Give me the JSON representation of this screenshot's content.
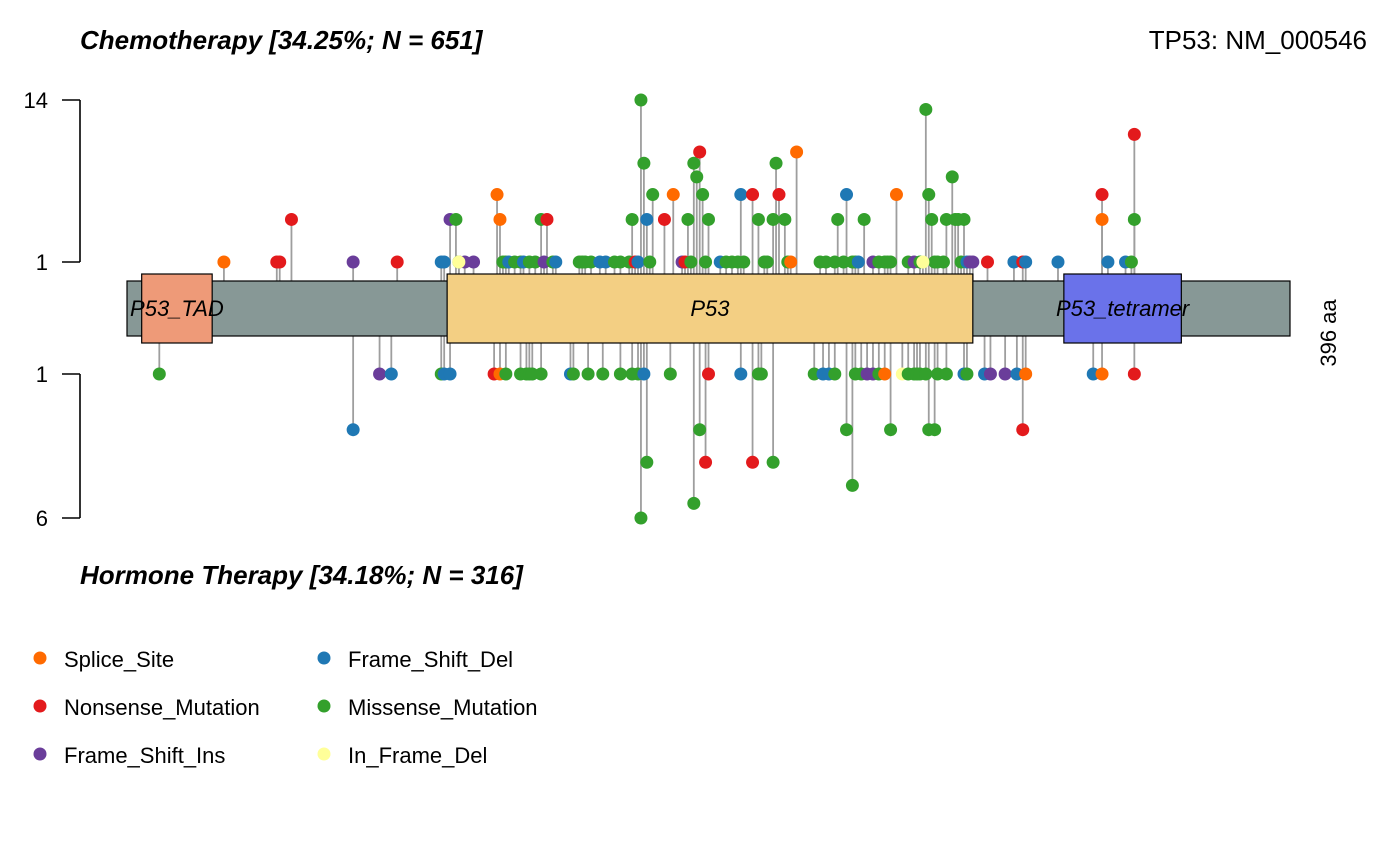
{
  "chart_data": {
    "type": "lollipop",
    "title_top": "Chemotherapy [34.25%; N = 651]",
    "title_bottom": "Hormone Therapy [34.18%; N = 316]",
    "gene_label": "TP53: NM_000546",
    "protein_length_label": "396 aa",
    "protein_length": 396,
    "y_ticks_top": [
      "14",
      "1"
    ],
    "y_ticks_bottom": [
      "1",
      "6"
    ],
    "domains": [
      {
        "name": "P53_TAD",
        "start": 5,
        "end": 29,
        "color": "#EE9A78"
      },
      {
        "name": "P53",
        "start": 109,
        "end": 288,
        "color": "#F3CF83"
      },
      {
        "name": "P53_tetramer",
        "start": 319,
        "end": 359,
        "color": "#6A72EA"
      }
    ],
    "legend": [
      {
        "label": "Splice_Site",
        "color": "#FF6A00",
        "key": "ss"
      },
      {
        "label": "Nonsense_Mutation",
        "color": "#E31A1C",
        "key": "nm"
      },
      {
        "label": "Frame_Shift_Ins",
        "color": "#6A3D9A",
        "key": "fi"
      },
      {
        "label": "Frame_Shift_Del",
        "color": "#1F78B4",
        "key": "fd"
      },
      {
        "label": "Missense_Mutation",
        "color": "#33A02C",
        "key": "mm"
      },
      {
        "label": "In_Frame_Del",
        "color": "#FFFF99",
        "key": "id"
      }
    ],
    "top_mutations": [
      {
        "pos": 33,
        "count": 1,
        "type": "ss"
      },
      {
        "pos": 51,
        "count": 1,
        "type": "nm"
      },
      {
        "pos": 52,
        "count": 1,
        "type": "nm"
      },
      {
        "pos": 56,
        "count": 2,
        "type": "nm"
      },
      {
        "pos": 77,
        "count": 1,
        "type": "fi"
      },
      {
        "pos": 92,
        "count": 1,
        "type": "nm"
      },
      {
        "pos": 107,
        "count": 1,
        "type": "fd"
      },
      {
        "pos": 108,
        "count": 1,
        "type": "fd"
      },
      {
        "pos": 110,
        "count": 2,
        "type": "fi"
      },
      {
        "pos": 112,
        "count": 2,
        "type": "mm"
      },
      {
        "pos": 113,
        "count": 1,
        "type": "mm"
      },
      {
        "pos": 115,
        "count": 1,
        "type": "fi"
      },
      {
        "pos": 118,
        "count": 1,
        "type": "fi"
      },
      {
        "pos": 126,
        "count": 3,
        "type": "ss"
      },
      {
        "pos": 127,
        "count": 2,
        "type": "ss"
      },
      {
        "pos": 128,
        "count": 1,
        "type": "mm"
      },
      {
        "pos": 129,
        "count": 1,
        "type": "mm"
      },
      {
        "pos": 130,
        "count": 1,
        "type": "fd"
      },
      {
        "pos": 132,
        "count": 1,
        "type": "mm"
      },
      {
        "pos": 134,
        "count": 1,
        "type": "mm"
      },
      {
        "pos": 135,
        "count": 1,
        "type": "fd"
      },
      {
        "pos": 137,
        "count": 1,
        "type": "mm"
      },
      {
        "pos": 139,
        "count": 1,
        "type": "mm"
      },
      {
        "pos": 141,
        "count": 2,
        "type": "mm"
      },
      {
        "pos": 142,
        "count": 1,
        "type": "fi"
      },
      {
        "pos": 143,
        "count": 2,
        "type": "nm"
      },
      {
        "pos": 145,
        "count": 1,
        "type": "mm"
      },
      {
        "pos": 146,
        "count": 1,
        "type": "fd"
      },
      {
        "pos": 154,
        "count": 1,
        "type": "mm"
      },
      {
        "pos": 155,
        "count": 1,
        "type": "mm"
      },
      {
        "pos": 156,
        "count": 1,
        "type": "mm"
      },
      {
        "pos": 158,
        "count": 1,
        "type": "mm"
      },
      {
        "pos": 161,
        "count": 1,
        "type": "fd"
      },
      {
        "pos": 163,
        "count": 1,
        "type": "fd"
      },
      {
        "pos": 166,
        "count": 1,
        "type": "mm"
      },
      {
        "pos": 168,
        "count": 1,
        "type": "mm"
      },
      {
        "pos": 171,
        "count": 1,
        "type": "mm"
      },
      {
        "pos": 172,
        "count": 2,
        "type": "mm"
      },
      {
        "pos": 173,
        "count": 1,
        "type": "nm"
      },
      {
        "pos": 174,
        "count": 1,
        "type": "fd"
      },
      {
        "pos": 175,
        "count": 14,
        "type": "mm"
      },
      {
        "pos": 176,
        "count": 5,
        "type": "mm"
      },
      {
        "pos": 177,
        "count": 2,
        "type": "fd"
      },
      {
        "pos": 178,
        "count": 1,
        "type": "mm"
      },
      {
        "pos": 179,
        "count": 3,
        "type": "mm"
      },
      {
        "pos": 183,
        "count": 2,
        "type": "nm"
      },
      {
        "pos": 186,
        "count": 3,
        "type": "ss"
      },
      {
        "pos": 189,
        "count": 1,
        "type": "fi"
      },
      {
        "pos": 190,
        "count": 1,
        "type": "nm"
      },
      {
        "pos": 191,
        "count": 2,
        "type": "mm"
      },
      {
        "pos": 192,
        "count": 1,
        "type": "mm"
      },
      {
        "pos": 193,
        "count": 5,
        "type": "mm"
      },
      {
        "pos": 194,
        "count": 4,
        "type": "mm"
      },
      {
        "pos": 195,
        "count": 6,
        "type": "nm"
      },
      {
        "pos": 196,
        "count": 3,
        "type": "mm"
      },
      {
        "pos": 197,
        "count": 1,
        "type": "mm"
      },
      {
        "pos": 198,
        "count": 2,
        "type": "mm"
      },
      {
        "pos": 202,
        "count": 1,
        "type": "fd"
      },
      {
        "pos": 204,
        "count": 1,
        "type": "mm"
      },
      {
        "pos": 206,
        "count": 1,
        "type": "mm"
      },
      {
        "pos": 208,
        "count": 1,
        "type": "mm"
      },
      {
        "pos": 209,
        "count": 3,
        "type": "fd"
      },
      {
        "pos": 210,
        "count": 1,
        "type": "mm"
      },
      {
        "pos": 213,
        "count": 3,
        "type": "nm"
      },
      {
        "pos": 215,
        "count": 2,
        "type": "mm"
      },
      {
        "pos": 217,
        "count": 1,
        "type": "mm"
      },
      {
        "pos": 218,
        "count": 1,
        "type": "mm"
      },
      {
        "pos": 220,
        "count": 2,
        "type": "mm"
      },
      {
        "pos": 221,
        "count": 5,
        "type": "mm"
      },
      {
        "pos": 222,
        "count": 3,
        "type": "nm"
      },
      {
        "pos": 224,
        "count": 2,
        "type": "mm"
      },
      {
        "pos": 225,
        "count": 1,
        "type": "mm"
      },
      {
        "pos": 226,
        "count": 1,
        "type": "ss"
      },
      {
        "pos": 228,
        "count": 6,
        "type": "ss"
      },
      {
        "pos": 236,
        "count": 1,
        "type": "mm"
      },
      {
        "pos": 238,
        "count": 1,
        "type": "mm"
      },
      {
        "pos": 241,
        "count": 1,
        "type": "mm"
      },
      {
        "pos": 242,
        "count": 2,
        "type": "mm"
      },
      {
        "pos": 244,
        "count": 1,
        "type": "mm"
      },
      {
        "pos": 245,
        "count": 3,
        "type": "fd"
      },
      {
        "pos": 247,
        "count": 1,
        "type": "mm"
      },
      {
        "pos": 248,
        "count": 1,
        "type": "mm"
      },
      {
        "pos": 249,
        "count": 1,
        "type": "fd"
      },
      {
        "pos": 251,
        "count": 2,
        "type": "mm"
      },
      {
        "pos": 254,
        "count": 1,
        "type": "fi"
      },
      {
        "pos": 256,
        "count": 1,
        "type": "mm"
      },
      {
        "pos": 258,
        "count": 1,
        "type": "mm"
      },
      {
        "pos": 259,
        "count": 1,
        "type": "mm"
      },
      {
        "pos": 260,
        "count": 1,
        "type": "mm"
      },
      {
        "pos": 262,
        "count": 3,
        "type": "ss"
      },
      {
        "pos": 266,
        "count": 1,
        "type": "mm"
      },
      {
        "pos": 268,
        "count": 1,
        "type": "fi"
      },
      {
        "pos": 270,
        "count": 1,
        "type": "mm"
      },
      {
        "pos": 272,
        "count": 12,
        "type": "mm"
      },
      {
        "pos": 273,
        "count": 3,
        "type": "mm"
      },
      {
        "pos": 274,
        "count": 2,
        "type": "mm"
      },
      {
        "pos": 275,
        "count": 1,
        "type": "mm"
      },
      {
        "pos": 276,
        "count": 1,
        "type": "mm"
      },
      {
        "pos": 278,
        "count": 1,
        "type": "mm"
      },
      {
        "pos": 279,
        "count": 2,
        "type": "mm"
      },
      {
        "pos": 281,
        "count": 4,
        "type": "mm"
      },
      {
        "pos": 282,
        "count": 2,
        "type": "mm"
      },
      {
        "pos": 283,
        "count": 2,
        "type": "mm"
      },
      {
        "pos": 284,
        "count": 1,
        "type": "mm"
      },
      {
        "pos": 285,
        "count": 2,
        "type": "mm"
      },
      {
        "pos": 286,
        "count": 1,
        "type": "fd"
      },
      {
        "pos": 287,
        "count": 1,
        "type": "fi"
      },
      {
        "pos": 288,
        "count": 1,
        "type": "fi"
      },
      {
        "pos": 293,
        "count": 1,
        "type": "nm"
      },
      {
        "pos": 302,
        "count": 1,
        "type": "fd"
      },
      {
        "pos": 305,
        "count": 1,
        "type": "nm"
      },
      {
        "pos": 306,
        "count": 1,
        "type": "fd"
      },
      {
        "pos": 317,
        "count": 1,
        "type": "fd"
      },
      {
        "pos": 332,
        "count": 3,
        "type": "nm"
      },
      {
        "pos": 332,
        "count": 2,
        "type": "ss"
      },
      {
        "pos": 334,
        "count": 1,
        "type": "fd"
      },
      {
        "pos": 340,
        "count": 1,
        "type": "fd"
      },
      {
        "pos": 342,
        "count": 1,
        "type": "mm"
      },
      {
        "pos": 343,
        "count": 8,
        "type": "nm"
      },
      {
        "pos": 343,
        "count": 2,
        "type": "mm"
      },
      {
        "pos": 113,
        "count": 1,
        "type": "id"
      },
      {
        "pos": 271,
        "count": 1,
        "type": "id"
      }
    ],
    "bottom_mutations": [
      {
        "pos": 11,
        "count": 1,
        "type": "mm"
      },
      {
        "pos": 77,
        "count": 2,
        "type": "fd"
      },
      {
        "pos": 86,
        "count": 1,
        "type": "fi"
      },
      {
        "pos": 90,
        "count": 1,
        "type": "fd"
      },
      {
        "pos": 107,
        "count": 1,
        "type": "mm"
      },
      {
        "pos": 108,
        "count": 1,
        "type": "fd"
      },
      {
        "pos": 110,
        "count": 1,
        "type": "fd"
      },
      {
        "pos": 125,
        "count": 1,
        "type": "nm"
      },
      {
        "pos": 127,
        "count": 1,
        "type": "ss"
      },
      {
        "pos": 129,
        "count": 1,
        "type": "mm"
      },
      {
        "pos": 134,
        "count": 1,
        "type": "mm"
      },
      {
        "pos": 136,
        "count": 1,
        "type": "mm"
      },
      {
        "pos": 137,
        "count": 1,
        "type": "mm"
      },
      {
        "pos": 138,
        "count": 1,
        "type": "mm"
      },
      {
        "pos": 141,
        "count": 1,
        "type": "mm"
      },
      {
        "pos": 151,
        "count": 1,
        "type": "fd"
      },
      {
        "pos": 152,
        "count": 1,
        "type": "mm"
      },
      {
        "pos": 157,
        "count": 1,
        "type": "mm"
      },
      {
        "pos": 162,
        "count": 1,
        "type": "mm"
      },
      {
        "pos": 168,
        "count": 1,
        "type": "mm"
      },
      {
        "pos": 172,
        "count": 1,
        "type": "mm"
      },
      {
        "pos": 174,
        "count": 1,
        "type": "mm"
      },
      {
        "pos": 175,
        "count": 6,
        "type": "mm"
      },
      {
        "pos": 176,
        "count": 1,
        "type": "fd"
      },
      {
        "pos": 177,
        "count": 3,
        "type": "mm"
      },
      {
        "pos": 185,
        "count": 1,
        "type": "mm"
      },
      {
        "pos": 193,
        "count": 5,
        "type": "mm"
      },
      {
        "pos": 195,
        "count": 2,
        "type": "mm"
      },
      {
        "pos": 197,
        "count": 3,
        "type": "nm"
      },
      {
        "pos": 198,
        "count": 1,
        "type": "nm"
      },
      {
        "pos": 209,
        "count": 1,
        "type": "fd"
      },
      {
        "pos": 213,
        "count": 3,
        "type": "nm"
      },
      {
        "pos": 215,
        "count": 1,
        "type": "mm"
      },
      {
        "pos": 216,
        "count": 1,
        "type": "mm"
      },
      {
        "pos": 220,
        "count": 3,
        "type": "mm"
      },
      {
        "pos": 234,
        "count": 1,
        "type": "mm"
      },
      {
        "pos": 237,
        "count": 1,
        "type": "fd"
      },
      {
        "pos": 239,
        "count": 1,
        "type": "fd"
      },
      {
        "pos": 241,
        "count": 1,
        "type": "mm"
      },
      {
        "pos": 245,
        "count": 2,
        "type": "mm"
      },
      {
        "pos": 247,
        "count": 4,
        "type": "mm"
      },
      {
        "pos": 248,
        "count": 1,
        "type": "mm"
      },
      {
        "pos": 250,
        "count": 1,
        "type": "mm"
      },
      {
        "pos": 252,
        "count": 1,
        "type": "fi"
      },
      {
        "pos": 254,
        "count": 1,
        "type": "fi"
      },
      {
        "pos": 256,
        "count": 1,
        "type": "mm"
      },
      {
        "pos": 258,
        "count": 1,
        "type": "ss"
      },
      {
        "pos": 260,
        "count": 2,
        "type": "mm"
      },
      {
        "pos": 264,
        "count": 1,
        "type": "id"
      },
      {
        "pos": 266,
        "count": 1,
        "type": "mm"
      },
      {
        "pos": 268,
        "count": 1,
        "type": "mm"
      },
      {
        "pos": 269,
        "count": 1,
        "type": "mm"
      },
      {
        "pos": 270,
        "count": 1,
        "type": "mm"
      },
      {
        "pos": 272,
        "count": 1,
        "type": "mm"
      },
      {
        "pos": 273,
        "count": 2,
        "type": "mm"
      },
      {
        "pos": 275,
        "count": 2,
        "type": "mm"
      },
      {
        "pos": 276,
        "count": 1,
        "type": "mm"
      },
      {
        "pos": 279,
        "count": 1,
        "type": "mm"
      },
      {
        "pos": 285,
        "count": 1,
        "type": "fd"
      },
      {
        "pos": 286,
        "count": 1,
        "type": "mm"
      },
      {
        "pos": 292,
        "count": 1,
        "type": "fd"
      },
      {
        "pos": 294,
        "count": 1,
        "type": "fi"
      },
      {
        "pos": 299,
        "count": 1,
        "type": "fi"
      },
      {
        "pos": 303,
        "count": 1,
        "type": "fd"
      },
      {
        "pos": 305,
        "count": 2,
        "type": "nm"
      },
      {
        "pos": 306,
        "count": 1,
        "type": "ss"
      },
      {
        "pos": 329,
        "count": 1,
        "type": "fd"
      },
      {
        "pos": 332,
        "count": 1,
        "type": "ss"
      },
      {
        "pos": 343,
        "count": 1,
        "type": "nm"
      }
    ]
  }
}
